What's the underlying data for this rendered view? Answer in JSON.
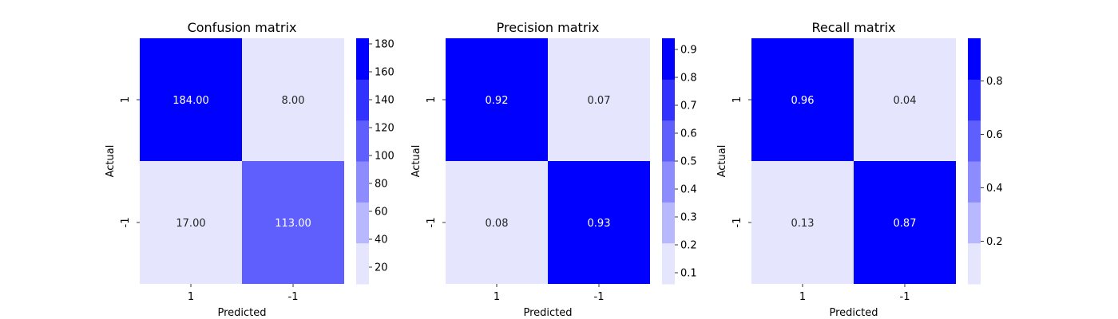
{
  "chart_data": [
    {
      "type": "heatmap",
      "title": "Confusion matrix",
      "xlabel": "Predicted",
      "ylabel": "Actual",
      "x_categories": [
        "1",
        "-1"
      ],
      "y_categories": [
        "1",
        "-1"
      ],
      "values": [
        [
          184,
          8
        ],
        [
          17,
          113
        ]
      ],
      "cell_labels": [
        [
          "184.00",
          "8.00"
        ],
        [
          "17.00",
          "113.00"
        ]
      ],
      "colorbar": {
        "min": 8,
        "max": 184,
        "ticks": [
          20,
          40,
          60,
          80,
          100,
          120,
          140,
          160,
          180
        ]
      }
    },
    {
      "type": "heatmap",
      "title": "Precision matrix",
      "xlabel": "Predicted",
      "ylabel": "Actual",
      "x_categories": [
        "1",
        "-1"
      ],
      "y_categories": [
        "1",
        "-1"
      ],
      "values": [
        [
          0.92,
          0.07
        ],
        [
          0.08,
          0.93
        ]
      ],
      "cell_labels": [
        [
          "0.92",
          "0.07"
        ],
        [
          "0.08",
          "0.93"
        ]
      ],
      "colorbar": {
        "min": 0.06,
        "max": 0.94,
        "ticks": [
          "0.1",
          "0.2",
          "0.3",
          "0.4",
          "0.5",
          "0.6",
          "0.7",
          "0.8",
          "0.9"
        ]
      }
    },
    {
      "type": "heatmap",
      "title": "Recall matrix",
      "xlabel": "Predicted",
      "ylabel": "Actual",
      "x_categories": [
        "1",
        "-1"
      ],
      "y_categories": [
        "1",
        "-1"
      ],
      "values": [
        [
          0.96,
          0.04
        ],
        [
          0.13,
          0.87
        ]
      ],
      "cell_labels": [
        [
          "0.96",
          "0.04"
        ],
        [
          "0.13",
          "0.87"
        ]
      ],
      "colorbar": {
        "min": 0.04,
        "max": 0.96,
        "ticks": [
          "0.2",
          "0.4",
          "0.6",
          "0.8"
        ]
      }
    }
  ],
  "colors": {
    "palette": [
      "#e5e5fe",
      "#b8b8fe",
      "#8c8cfe",
      "#5f5ffe",
      "#3232fe",
      "#0000fe"
    ],
    "text_light": "#ffffff",
    "text_dark": "#262626"
  }
}
